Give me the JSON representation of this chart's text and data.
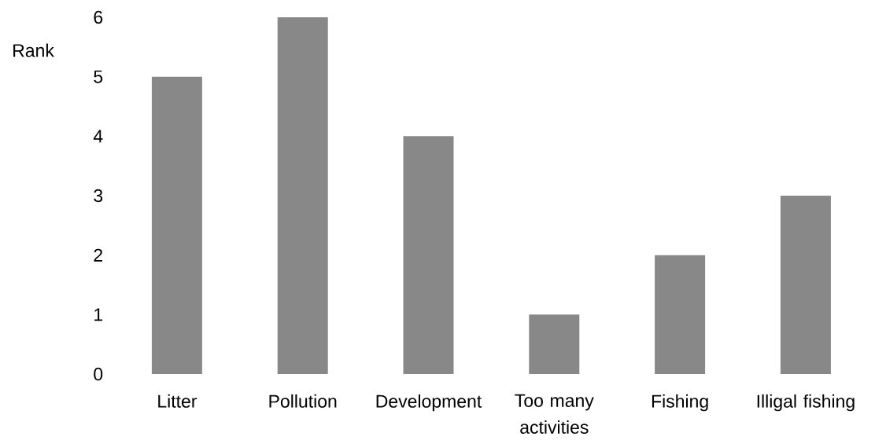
{
  "chart_data": {
    "type": "bar",
    "ylabel": "Rank",
    "categories": [
      "Litter",
      "Pollution",
      "Development",
      "Too many activities",
      "Fishing",
      "Illigal fishing"
    ],
    "values": [
      5,
      6,
      4,
      1,
      2,
      3
    ],
    "color": "#888888",
    "ylim": [
      0,
      6
    ],
    "yticks": [
      0,
      1,
      2,
      3,
      4,
      5,
      6
    ]
  }
}
